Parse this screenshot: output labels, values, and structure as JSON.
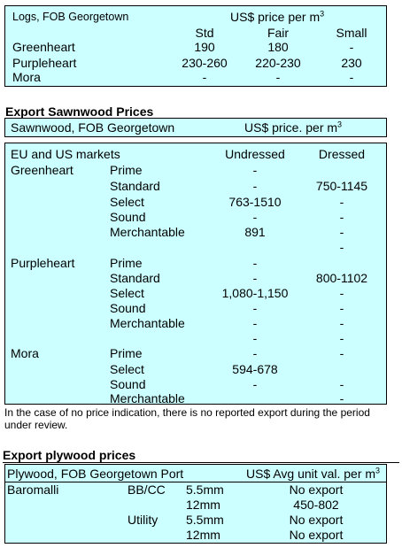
{
  "logs": {
    "caption": "Logs, FOB Georgetown",
    "price_header": "US$ price per m",
    "price_header_sup": "3",
    "columns": [
      "Std",
      "Fair",
      "Small"
    ],
    "rows": [
      {
        "name": "Greenheart",
        "values": [
          "190",
          "180",
          "-"
        ]
      },
      {
        "name": "Purpleheart",
        "values": [
          "230-260",
          "220-230",
          "230"
        ]
      },
      {
        "name": "Mora",
        "values": [
          "-",
          "-",
          "-"
        ]
      }
    ]
  },
  "sawnwood": {
    "title": "Export Sawnwood Prices",
    "caption": "Sawnwood, FOB Georgetown",
    "price_header": "US$ price. per m",
    "price_header_sup": "3",
    "market_label": "EU and US markets",
    "col_undressed": "Undressed",
    "col_dressed": "Dressed",
    "species": [
      {
        "name": "Greenheart",
        "grades": [
          {
            "grade": "Prime",
            "undressed": "-",
            "dressed": ""
          },
          {
            "grade": "Standard",
            "undressed": "-",
            "dressed": "750-1145"
          },
          {
            "grade": "Select",
            "undressed": "763-1510",
            "dressed": "-"
          },
          {
            "grade": "Sound",
            "undressed": "-",
            "dressed": "-"
          },
          {
            "grade": "Merchantable",
            "undressed": "891",
            "dressed": "-"
          },
          {
            "grade": "",
            "undressed": "",
            "dressed": "-"
          }
        ]
      },
      {
        "name": "Purpleheart",
        "grades": [
          {
            "grade": "Prime",
            "undressed": "-",
            "dressed": ""
          },
          {
            "grade": "Standard",
            "undressed": "-",
            "dressed": "800-1102"
          },
          {
            "grade": "Select",
            "undressed": "1,080-1,150",
            "dressed": "-"
          },
          {
            "grade": "Sound",
            "undressed": "-",
            "dressed": "-"
          },
          {
            "grade": "Merchantable",
            "undressed": "-",
            "dressed": "-"
          },
          {
            "grade": "",
            "undressed": "-",
            "dressed": "-"
          }
        ]
      },
      {
        "name": "Mora",
        "grades": [
          {
            "grade": "Prime",
            "undressed": "-",
            "dressed": "-"
          },
          {
            "grade": "Select",
            "undressed": "594-678",
            "dressed": ""
          },
          {
            "grade": "Sound",
            "undressed": "-",
            "dressed": "-"
          },
          {
            "grade": "Merchantable",
            "undressed": "",
            "dressed": "-"
          }
        ]
      }
    ]
  },
  "note": "In the case of no price indication, there is no reported export during the period under review.",
  "plywood": {
    "title": "Export plywood prices",
    "caption": "Plywood, FOB Georgetown Port",
    "price_header": "US$ Avg unit val. per m",
    "price_header_sup": "3",
    "product": "Baromalli",
    "rows": [
      {
        "grade": "BB/CC",
        "size": "5.5mm",
        "value": "No export"
      },
      {
        "grade": "",
        "size": "12mm",
        "value": "450-802"
      },
      {
        "grade": "Utility",
        "size": "5.5mm",
        "value": "No export"
      },
      {
        "grade": "",
        "size": "12mm",
        "value": "No export"
      }
    ]
  }
}
